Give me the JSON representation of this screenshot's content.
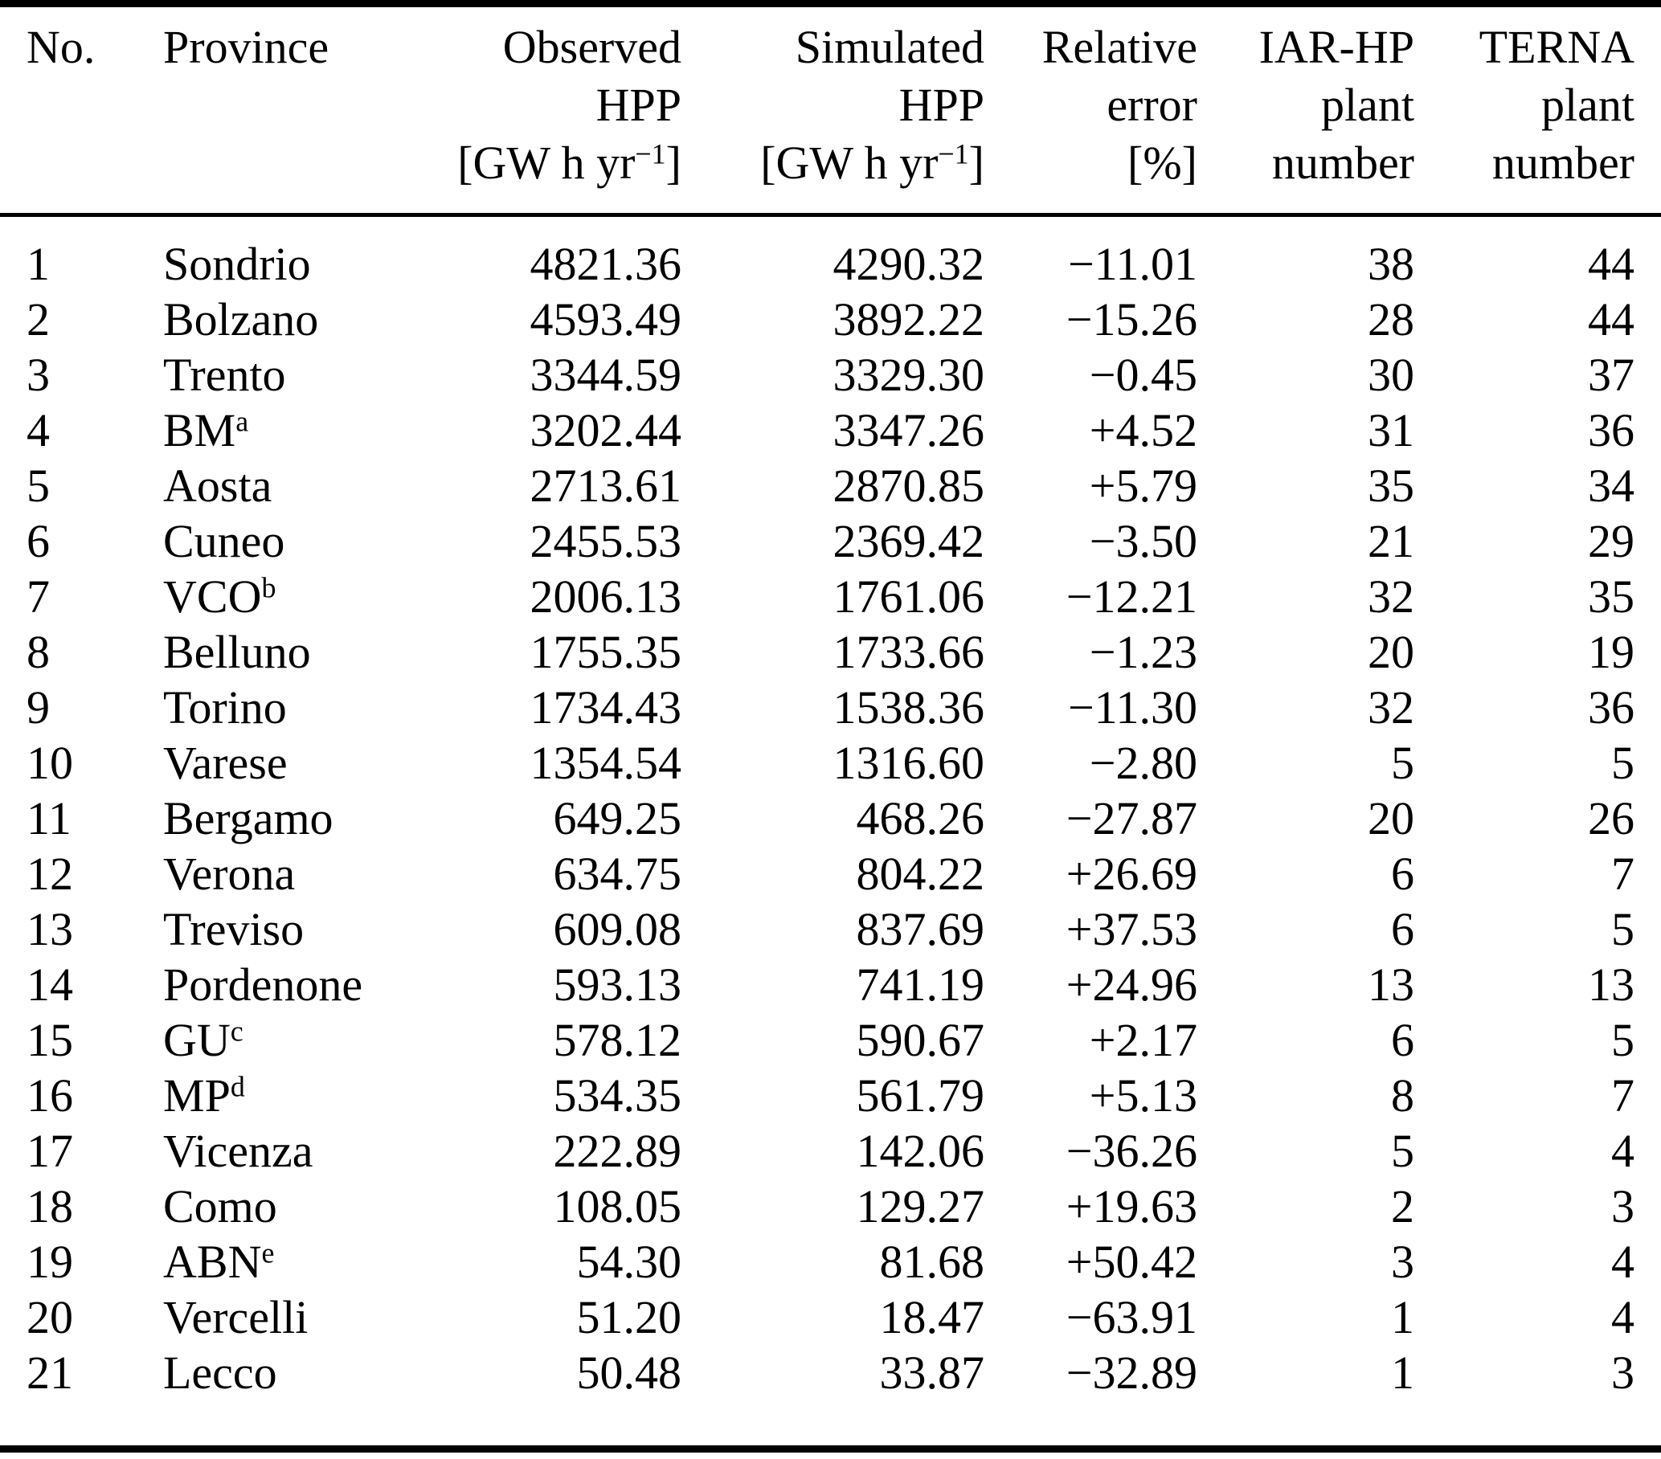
{
  "table": {
    "columns": [
      {
        "key": "no",
        "name": "no",
        "align": "left",
        "lines": [
          "No."
        ]
      },
      {
        "key": "province",
        "name": "province",
        "align": "left",
        "lines": [
          "Province"
        ]
      },
      {
        "key": "observed_hpp",
        "name": "observed-hpp",
        "align": "right",
        "lines": [
          "Observed",
          "HPP"
        ],
        "unit_prefix": "[GW h yr",
        "unit_sup": "−1",
        "unit_suffix": "]"
      },
      {
        "key": "simulated_hpp",
        "name": "simulated-hpp",
        "align": "right",
        "lines": [
          "Simulated",
          "HPP"
        ],
        "unit_prefix": "[GW h yr",
        "unit_sup": "−1",
        "unit_suffix": "]"
      },
      {
        "key": "relative_error",
        "name": "relative-error",
        "align": "right",
        "lines": [
          "Relative",
          "error"
        ],
        "unit_prefix": "[%]",
        "unit_sup": "",
        "unit_suffix": ""
      },
      {
        "key": "iar_hp_plant_number",
        "name": "iar-hp-plant-number",
        "align": "right",
        "lines": [
          "IAR-HP",
          "plant",
          "number"
        ]
      },
      {
        "key": "terna_plant_number",
        "name": "terna-plant-number",
        "align": "right",
        "lines": [
          "TERNA",
          "plant",
          "number"
        ]
      }
    ],
    "rows": [
      {
        "no": "1",
        "province": "Sondrio",
        "footnote": "",
        "observed_hpp": "4821.36",
        "simulated_hpp": "4290.32",
        "relative_error": "−11.01",
        "iar_hp_plant_number": "38",
        "terna_plant_number": "44"
      },
      {
        "no": "2",
        "province": "Bolzano",
        "footnote": "",
        "observed_hpp": "4593.49",
        "simulated_hpp": "3892.22",
        "relative_error": "−15.26",
        "iar_hp_plant_number": "28",
        "terna_plant_number": "44"
      },
      {
        "no": "3",
        "province": "Trento",
        "footnote": "",
        "observed_hpp": "3344.59",
        "simulated_hpp": "3329.30",
        "relative_error": "−0.45",
        "iar_hp_plant_number": "30",
        "terna_plant_number": "37"
      },
      {
        "no": "4",
        "province": "BM",
        "footnote": "a",
        "observed_hpp": "3202.44",
        "simulated_hpp": "3347.26",
        "relative_error": "+4.52",
        "iar_hp_plant_number": "31",
        "terna_plant_number": "36"
      },
      {
        "no": "5",
        "province": "Aosta",
        "footnote": "",
        "observed_hpp": "2713.61",
        "simulated_hpp": "2870.85",
        "relative_error": "+5.79",
        "iar_hp_plant_number": "35",
        "terna_plant_number": "34"
      },
      {
        "no": "6",
        "province": "Cuneo",
        "footnote": "",
        "observed_hpp": "2455.53",
        "simulated_hpp": "2369.42",
        "relative_error": "−3.50",
        "iar_hp_plant_number": "21",
        "terna_plant_number": "29"
      },
      {
        "no": "7",
        "province": "VCO",
        "footnote": "b",
        "observed_hpp": "2006.13",
        "simulated_hpp": "1761.06",
        "relative_error": "−12.21",
        "iar_hp_plant_number": "32",
        "terna_plant_number": "35"
      },
      {
        "no": "8",
        "province": "Belluno",
        "footnote": "",
        "observed_hpp": "1755.35",
        "simulated_hpp": "1733.66",
        "relative_error": "−1.23",
        "iar_hp_plant_number": "20",
        "terna_plant_number": "19"
      },
      {
        "no": "9",
        "province": "Torino",
        "footnote": "",
        "observed_hpp": "1734.43",
        "simulated_hpp": "1538.36",
        "relative_error": "−11.30",
        "iar_hp_plant_number": "32",
        "terna_plant_number": "36"
      },
      {
        "no": "10",
        "province": "Varese",
        "footnote": "",
        "observed_hpp": "1354.54",
        "simulated_hpp": "1316.60",
        "relative_error": "−2.80",
        "iar_hp_plant_number": "5",
        "terna_plant_number": "5"
      },
      {
        "no": "11",
        "province": "Bergamo",
        "footnote": "",
        "observed_hpp": "649.25",
        "simulated_hpp": "468.26",
        "relative_error": "−27.87",
        "iar_hp_plant_number": "20",
        "terna_plant_number": "26"
      },
      {
        "no": "12",
        "province": "Verona",
        "footnote": "",
        "observed_hpp": "634.75",
        "simulated_hpp": "804.22",
        "relative_error": "+26.69",
        "iar_hp_plant_number": "6",
        "terna_plant_number": "7"
      },
      {
        "no": "13",
        "province": "Treviso",
        "footnote": "",
        "observed_hpp": "609.08",
        "simulated_hpp": "837.69",
        "relative_error": "+37.53",
        "iar_hp_plant_number": "6",
        "terna_plant_number": "5"
      },
      {
        "no": "14",
        "province": "Pordenone",
        "footnote": "",
        "observed_hpp": "593.13",
        "simulated_hpp": "741.19",
        "relative_error": "+24.96",
        "iar_hp_plant_number": "13",
        "terna_plant_number": "13"
      },
      {
        "no": "15",
        "province": "GU",
        "footnote": "c",
        "observed_hpp": "578.12",
        "simulated_hpp": "590.67",
        "relative_error": "+2.17",
        "iar_hp_plant_number": "6",
        "terna_plant_number": "5"
      },
      {
        "no": "16",
        "province": "MP",
        "footnote": "d",
        "observed_hpp": "534.35",
        "simulated_hpp": "561.79",
        "relative_error": "+5.13",
        "iar_hp_plant_number": "8",
        "terna_plant_number": "7"
      },
      {
        "no": "17",
        "province": "Vicenza",
        "footnote": "",
        "observed_hpp": "222.89",
        "simulated_hpp": "142.06",
        "relative_error": "−36.26",
        "iar_hp_plant_number": "5",
        "terna_plant_number": "4"
      },
      {
        "no": "18",
        "province": "Como",
        "footnote": "",
        "observed_hpp": "108.05",
        "simulated_hpp": "129.27",
        "relative_error": "+19.63",
        "iar_hp_plant_number": "2",
        "terna_plant_number": "3"
      },
      {
        "no": "19",
        "province": "ABN",
        "footnote": "e",
        "observed_hpp": "54.30",
        "simulated_hpp": "81.68",
        "relative_error": "+50.42",
        "iar_hp_plant_number": "3",
        "terna_plant_number": "4"
      },
      {
        "no": "20",
        "province": "Vercelli",
        "footnote": "",
        "observed_hpp": "51.20",
        "simulated_hpp": "18.47",
        "relative_error": "−63.91",
        "iar_hp_plant_number": "1",
        "terna_plant_number": "4"
      },
      {
        "no": "21",
        "province": "Lecco",
        "footnote": "",
        "observed_hpp": "50.48",
        "simulated_hpp": "33.87",
        "relative_error": "−32.89",
        "iar_hp_plant_number": "1",
        "terna_plant_number": "3"
      }
    ]
  }
}
